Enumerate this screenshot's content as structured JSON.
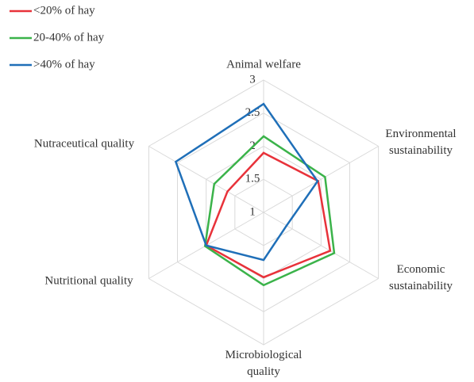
{
  "chart_data": {
    "type": "radar",
    "categories": [
      "Animal welfare",
      "Environmental sustainability",
      "Economic sustainability",
      "Microbiological quality",
      "Nutritional quality",
      "Nutraceutical quality"
    ],
    "series": [
      {
        "name": "<20% of hay",
        "color": "#e8323a",
        "values": [
          1.9,
          1.95,
          2.16,
          1.98,
          2.0,
          1.63
        ]
      },
      {
        "name": "20-40% of hay",
        "color": "#3bb34a",
        "values": [
          2.15,
          2.07,
          2.23,
          2.1,
          2.02,
          1.86
        ]
      },
      {
        "name": ">40% of hay",
        "color": "#1f6fb8",
        "values": [
          2.64,
          1.94,
          1.4,
          1.72,
          2.0,
          2.53
        ]
      }
    ],
    "rlim": [
      1,
      3
    ],
    "rticks": [
      1,
      1.5,
      2,
      2.5,
      3
    ],
    "grid": true,
    "legend": "top-left"
  }
}
